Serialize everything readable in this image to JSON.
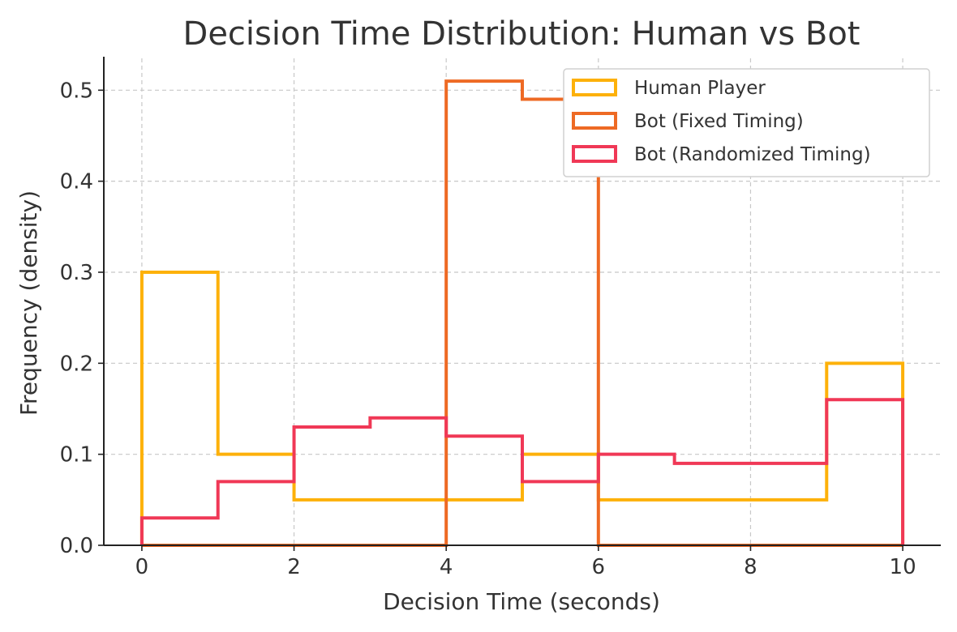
{
  "chart_data": {
    "type": "histogram",
    "title": "Decision Time Distribution: Human vs Bot",
    "xlabel": "Decision Time (seconds)",
    "ylabel": "Frequency (density)",
    "xlim": [
      -0.5,
      10.5
    ],
    "ylim": [
      0,
      0.535
    ],
    "xticks": [
      0,
      2,
      4,
      6,
      8,
      10
    ],
    "xtick_labels": [
      "0",
      "2",
      "4",
      "6",
      "8",
      "10"
    ],
    "yticks": [
      0.0,
      0.1,
      0.2,
      0.3,
      0.4,
      0.5
    ],
    "ytick_labels": [
      "0.0",
      "0.1",
      "0.2",
      "0.3",
      "0.4",
      "0.5"
    ],
    "grid": true,
    "legend_position": "top-right",
    "bin_edges": [
      0,
      1,
      2,
      3,
      4,
      5,
      6,
      7,
      8,
      9,
      10
    ],
    "series": [
      {
        "name": "Human Player",
        "color": "#FDB10A",
        "values": [
          0.3,
          0.1,
          0.05,
          0.05,
          0.05,
          0.1,
          0.05,
          0.05,
          0.05,
          0.2
        ]
      },
      {
        "name": "Bot (Fixed Timing)",
        "color": "#EE6A24",
        "values": [
          0,
          0,
          0,
          0,
          0.51,
          0.49,
          0,
          0,
          0,
          0
        ]
      },
      {
        "name": "Bot (Randomized Timing)",
        "color": "#F03856",
        "values": [
          0.03,
          0.07,
          0.13,
          0.14,
          0.12,
          0.07,
          0.1,
          0.09,
          0.09,
          0.16
        ]
      }
    ]
  }
}
